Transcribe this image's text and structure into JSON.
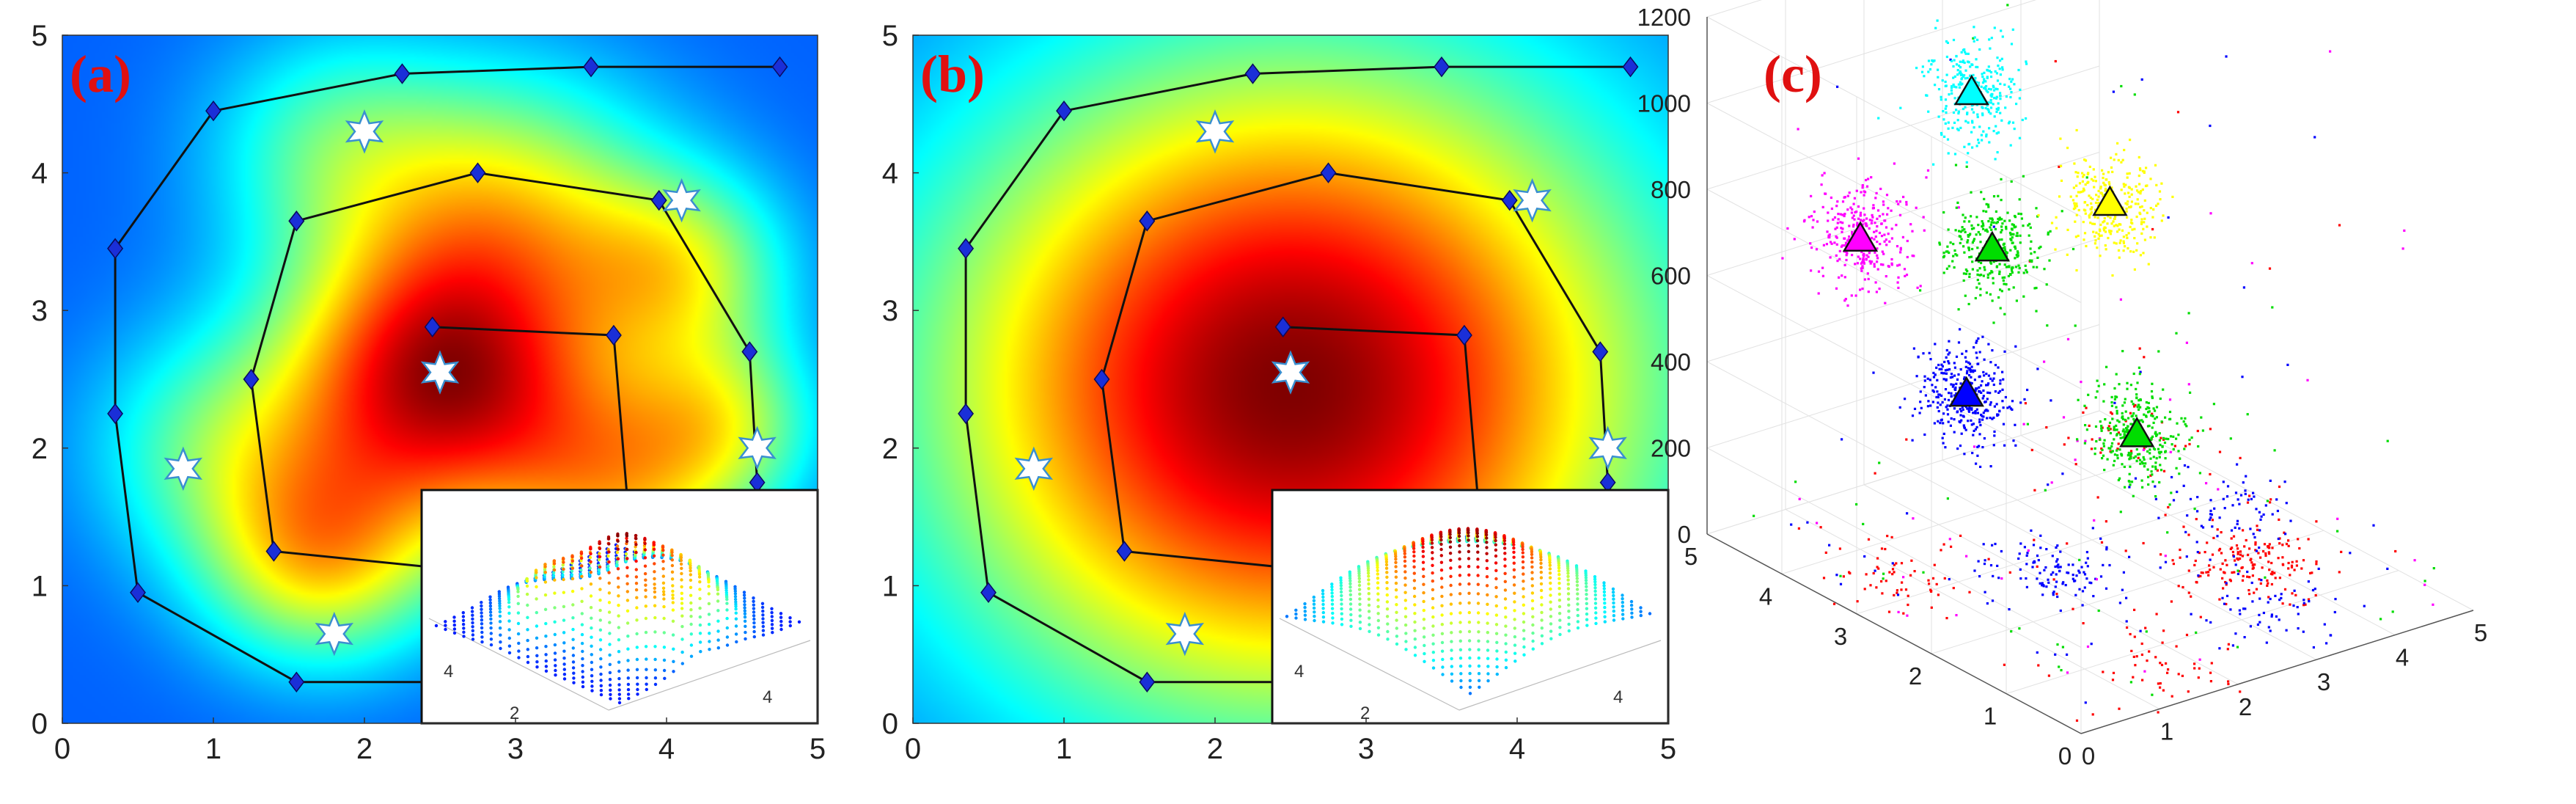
{
  "chart_data": [
    {
      "type": "heatmap",
      "panel": "(a)",
      "title": "",
      "xlabel": "",
      "ylabel": "",
      "xlim": [
        0,
        5
      ],
      "ylim": [
        0,
        5
      ],
      "x_ticks": [
        "0",
        "1",
        "2",
        "3",
        "4",
        "5"
      ],
      "y_ticks": [
        "0",
        "1",
        "2",
        "3",
        "4",
        "5"
      ],
      "colormap": "jet",
      "peaks": [
        {
          "x": 2.5,
          "y": 2.5,
          "amplitude": 1.0,
          "sigma": 0.75
        },
        {
          "x": 1.7,
          "y": 1.2,
          "amplitude": 0.55,
          "sigma": 0.55
        },
        {
          "x": 3.7,
          "y": 1.7,
          "amplitude": 0.5,
          "sigma": 0.6
        },
        {
          "x": 3.0,
          "y": 3.8,
          "amplitude": 0.45,
          "sigma": 0.7
        },
        {
          "x": 4.1,
          "y": 3.3,
          "amplitude": 0.45,
          "sigma": 0.5
        },
        {
          "x": 1.8,
          "y": 4.2,
          "amplitude": 0.3,
          "sigma": 0.6
        },
        {
          "x": 4.4,
          "y": 2.2,
          "amplitude": 0.35,
          "sigma": 0.45
        },
        {
          "x": 1.0,
          "y": 2.0,
          "amplitude": 0.3,
          "sigma": 0.6
        }
      ],
      "paths": [
        {
          "points": [
            [
              0.35,
              3.45
            ],
            [
              1.0,
              4.45
            ],
            [
              2.25,
              4.72
            ],
            [
              3.5,
              4.77
            ],
            [
              4.75,
              4.77
            ]
          ]
        },
        {
          "points": [
            [
              0.35,
              3.45
            ],
            [
              0.35,
              2.25
            ],
            [
              0.5,
              0.95
            ],
            [
              1.55,
              0.3
            ],
            [
              2.55,
              0.3
            ]
          ]
        },
        {
          "points": [
            [
              1.55,
              3.65
            ],
            [
              2.75,
              4.0
            ],
            [
              3.95,
              3.8
            ],
            [
              4.55,
              2.7
            ],
            [
              4.6,
              1.75
            ]
          ]
        },
        {
          "points": [
            [
              1.55,
              3.65
            ],
            [
              1.25,
              2.5
            ],
            [
              1.4,
              1.25
            ],
            [
              2.75,
              1.1
            ]
          ]
        },
        {
          "points": [
            [
              2.45,
              2.88
            ],
            [
              3.65,
              2.82
            ],
            [
              3.75,
              1.5
            ]
          ]
        }
      ],
      "stars": [
        [
          2.0,
          4.3
        ],
        [
          4.1,
          3.8
        ],
        [
          2.5,
          2.55
        ],
        [
          0.8,
          1.85
        ],
        [
          4.6,
          2.0
        ],
        [
          1.8,
          0.65
        ]
      ],
      "inset": {
        "type": "surface",
        "tick_labels": [
          "4",
          "2",
          "4"
        ]
      }
    },
    {
      "type": "heatmap",
      "panel": "(b)",
      "title": "",
      "xlabel": "",
      "ylabel": "",
      "xlim": [
        0,
        5
      ],
      "ylim": [
        0,
        5
      ],
      "x_ticks": [
        "0",
        "1",
        "2",
        "3",
        "4",
        "5"
      ],
      "y_ticks": [
        "0",
        "1",
        "2",
        "3",
        "4",
        "5"
      ],
      "colormap": "jet",
      "peaks": [
        {
          "x": 2.5,
          "y": 2.45,
          "amplitude": 1.0,
          "sigma": 1.65
        }
      ],
      "paths": [
        {
          "points": [
            [
              0.35,
              3.45
            ],
            [
              1.0,
              4.45
            ],
            [
              2.25,
              4.72
            ],
            [
              3.5,
              4.77
            ],
            [
              4.75,
              4.77
            ]
          ]
        },
        {
          "points": [
            [
              0.35,
              3.45
            ],
            [
              0.35,
              2.25
            ],
            [
              0.5,
              0.95
            ],
            [
              1.55,
              0.3
            ],
            [
              2.55,
              0.3
            ]
          ]
        },
        {
          "points": [
            [
              1.55,
              3.65
            ],
            [
              2.75,
              4.0
            ],
            [
              3.95,
              3.8
            ],
            [
              4.55,
              2.7
            ],
            [
              4.6,
              1.75
            ]
          ]
        },
        {
          "points": [
            [
              1.55,
              3.65
            ],
            [
              1.25,
              2.5
            ],
            [
              1.4,
              1.25
            ],
            [
              2.75,
              1.1
            ]
          ]
        },
        {
          "points": [
            [
              2.45,
              2.88
            ],
            [
              3.65,
              2.82
            ],
            [
              3.75,
              1.5
            ]
          ]
        }
      ],
      "stars": [
        [
          2.0,
          4.3
        ],
        [
          4.1,
          3.8
        ],
        [
          2.5,
          2.55
        ],
        [
          0.8,
          1.85
        ],
        [
          4.6,
          2.0
        ],
        [
          1.8,
          0.65
        ]
      ],
      "inset": {
        "type": "surface",
        "tick_labels": [
          "4",
          "2",
          "4"
        ]
      }
    },
    {
      "type": "scatter",
      "panel": "(c)",
      "title": "",
      "xlabel": "",
      "ylabel": "",
      "zlabel": "",
      "xlim": [
        0,
        5
      ],
      "ylim": [
        0,
        5
      ],
      "zlim": [
        0,
        1200
      ],
      "x_ticks": [
        "0",
        "1",
        "2",
        "3",
        "4",
        "5"
      ],
      "y_ticks": [
        "0",
        "1",
        "2",
        "3",
        "4",
        "5"
      ],
      "z_ticks": [
        "0",
        "200",
        "400",
        "600",
        "800",
        "1000",
        "1200"
      ],
      "grid": true,
      "clusters": [
        {
          "color": "#ff00ff",
          "x": 1.0,
          "y": 4.0,
          "z": 720,
          "count": 320
        },
        {
          "color": "#0000ff",
          "x": 1.4,
          "y": 3.0,
          "z": 430,
          "count": 360
        },
        {
          "color": "#00dd00",
          "x": 2.3,
          "y": 3.6,
          "z": 660,
          "count": 320
        },
        {
          "color": "#00ffff",
          "x": 2.8,
          "y": 4.4,
          "z": 920,
          "count": 320
        },
        {
          "color": "#00dd00",
          "x": 3.0,
          "y": 2.4,
          "z": 300,
          "count": 320
        },
        {
          "color": "#ffff00",
          "x": 3.8,
          "y": 3.6,
          "z": 680,
          "count": 320
        }
      ],
      "floor_clusters": [
        {
          "color": "#ff0000",
          "x": 3.5,
          "y": 1.5,
          "count": 90
        },
        {
          "color": "#ff0000",
          "x": 4.0,
          "y": 1.8,
          "count": 80
        },
        {
          "color": "#0000ff",
          "x": 3.2,
          "y": 0.8,
          "count": 60
        },
        {
          "color": "#ff0000",
          "x": 0.6,
          "y": 3.2,
          "count": 60
        },
        {
          "color": "#ff0000",
          "x": 1.5,
          "y": 0.6,
          "count": 50
        },
        {
          "color": "#0000ff",
          "x": 2.0,
          "y": 2.5,
          "count": 120
        },
        {
          "color": "#0000ff",
          "x": 4.3,
          "y": 2.6,
          "count": 70
        },
        {
          "color": "#ff0000",
          "x": 4.6,
          "y": 4.2,
          "count": 50
        }
      ],
      "centroids": [
        {
          "color": "#ff00ff",
          "x": 1.0,
          "y": 4.0,
          "z": 720
        },
        {
          "color": "#0000ff",
          "x": 1.4,
          "y": 3.0,
          "z": 430
        },
        {
          "color": "#00dd00",
          "x": 2.3,
          "y": 3.6,
          "z": 660
        },
        {
          "color": "#00ffff",
          "x": 2.8,
          "y": 4.4,
          "z": 920
        },
        {
          "color": "#00dd00",
          "x": 3.0,
          "y": 2.4,
          "z": 300
        },
        {
          "color": "#ffff00",
          "x": 3.8,
          "y": 3.6,
          "z": 680
        }
      ]
    }
  ]
}
